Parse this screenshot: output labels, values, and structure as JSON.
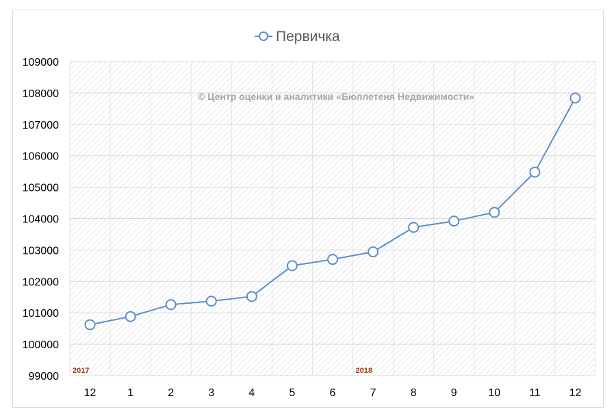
{
  "chart_data": {
    "type": "line",
    "legend": {
      "position": "top",
      "entries": [
        "Первичка"
      ]
    },
    "x": [
      "12",
      "1",
      "2",
      "3",
      "4",
      "5",
      "6",
      "7",
      "8",
      "9",
      "10",
      "11",
      "12"
    ],
    "series": [
      {
        "name": "Первичка",
        "color": "#5b8ec9",
        "marker": "circle-hollow",
        "values": [
          100620,
          100880,
          101260,
          101370,
          101520,
          102500,
          102700,
          102940,
          103720,
          103920,
          104200,
          105480,
          107840
        ]
      }
    ],
    "ylim": [
      99000,
      109000
    ],
    "yticks": [
      "99000",
      "100000",
      "101000",
      "102000",
      "103000",
      "104000",
      "105000",
      "106000",
      "107000",
      "108000",
      "109000"
    ],
    "grid": true,
    "year_labels": [
      {
        "text": "2017",
        "at_index": 0
      },
      {
        "text": "2018",
        "at_index": 7
      }
    ],
    "watermark": "© Центр оценки и аналитики «Бюллетеня Недвижимости»"
  }
}
